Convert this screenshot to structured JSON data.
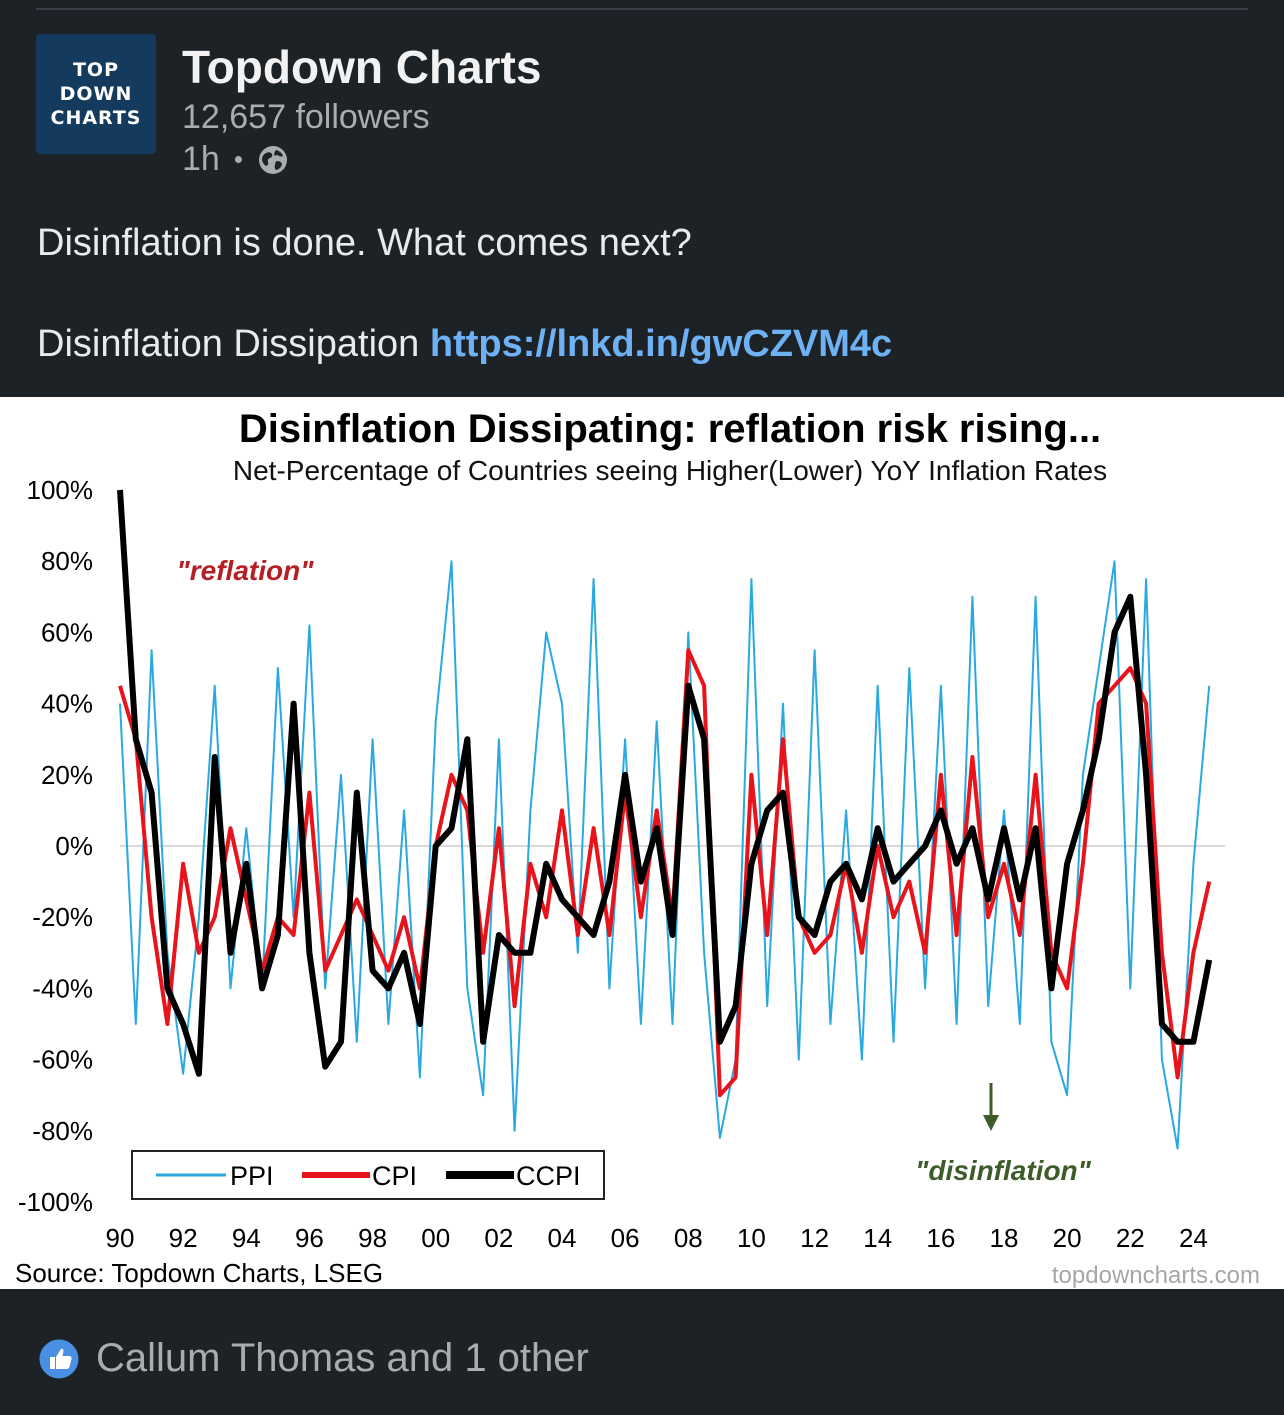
{
  "post": {
    "author": "Topdown Charts",
    "logo_lines": [
      "TOP",
      "DOWN",
      "CHARTS"
    ],
    "followers": "12,657 followers",
    "time": "1h",
    "separator": "•",
    "visibility_icon": "globe-icon",
    "line1": "Disinflation is done.  What comes next?",
    "line2_text": "Disinflation Dissipation",
    "link": "https://lnkd.in/gwCZVM4c"
  },
  "reactions": {
    "icon": "like-thumb-icon",
    "text": "Callum Thomas and 1 other"
  },
  "chart_data": {
    "type": "line",
    "title": "Disinflation Dissipating: reflation risk rising...",
    "subtitle": "Net-Percentage of Countries seeing Higher(Lower) YoY Inflation Rates",
    "ylim": [
      -100,
      100
    ],
    "xlim": [
      1990,
      2025
    ],
    "ytick_labels": [
      "100%",
      "80%",
      "60%",
      "40%",
      "20%",
      "0%",
      "-20%",
      "-40%",
      "-60%",
      "-80%",
      "-100%"
    ],
    "xtick_labels": [
      "90",
      "92",
      "94",
      "96",
      "98",
      "00",
      "02",
      "04",
      "06",
      "08",
      "10",
      "12",
      "14",
      "16",
      "18",
      "20",
      "22",
      "24"
    ],
    "annotations": {
      "reflation": "\"reflation\"",
      "disinflation": "\"disinflation\""
    },
    "source": "Source: Topdown Charts, LSEG",
    "watermark": "topdowncharts.com",
    "legend_position": "bottom-left",
    "colors": {
      "PPI": "#29a9e0",
      "CPI": "#e8141c",
      "CCPI": "#000000"
    },
    "series": [
      {
        "name": "PPI",
        "x": [
          1990,
          1990.5,
          1991,
          1991.5,
          1992,
          1992.5,
          1993,
          1993.5,
          1994,
          1994.5,
          1995,
          1995.5,
          1996,
          1996.5,
          1997,
          1997.5,
          1998,
          1998.5,
          1999,
          1999.5,
          2000,
          2000.5,
          2001,
          2001.5,
          2002,
          2002.5,
          2003,
          2003.5,
          2004,
          2004.5,
          2005,
          2005.5,
          2006,
          2006.5,
          2007,
          2007.5,
          2008,
          2008.5,
          2009,
          2009.5,
          2010,
          2010.5,
          2011,
          2011.5,
          2012,
          2012.5,
          2013,
          2013.5,
          2014,
          2014.5,
          2015,
          2015.5,
          2016,
          2016.5,
          2017,
          2017.5,
          2018,
          2018.5,
          2019,
          2019.5,
          2020,
          2020.5,
          2021,
          2021.5,
          2022,
          2022.5,
          2023,
          2023.5,
          2024,
          2024.5
        ],
        "y": [
          40,
          -50,
          55,
          -30,
          -64,
          -20,
          45,
          -40,
          5,
          -40,
          50,
          -20,
          62,
          -40,
          20,
          -55,
          30,
          -50,
          10,
          -65,
          35,
          80,
          -40,
          -70,
          30,
          -80,
          10,
          60,
          40,
          -30,
          75,
          -40,
          30,
          -50,
          35,
          -50,
          60,
          -30,
          -82,
          -60,
          75,
          -45,
          40,
          -60,
          55,
          -50,
          10,
          -60,
          45,
          -55,
          50,
          -40,
          45,
          -50,
          70,
          -45,
          10,
          -50,
          70,
          -55,
          -70,
          20,
          50,
          80,
          -40,
          75,
          -60,
          -85,
          -5,
          45
        ]
      },
      {
        "name": "CPI",
        "x": [
          1990,
          1990.5,
          1991,
          1991.5,
          1992,
          1992.5,
          1993,
          1993.5,
          1994,
          1994.5,
          1995,
          1995.5,
          1996,
          1996.5,
          1997,
          1997.5,
          1998,
          1998.5,
          1999,
          1999.5,
          2000,
          2000.5,
          2001,
          2001.5,
          2002,
          2002.5,
          2003,
          2003.5,
          2004,
          2004.5,
          2005,
          2005.5,
          2006,
          2006.5,
          2007,
          2007.5,
          2008,
          2008.5,
          2009,
          2009.5,
          2010,
          2010.5,
          2011,
          2011.5,
          2012,
          2012.5,
          2013,
          2013.5,
          2014,
          2014.5,
          2015,
          2015.5,
          2016,
          2016.5,
          2017,
          2017.5,
          2018,
          2018.5,
          2019,
          2019.5,
          2020,
          2020.5,
          2021,
          2021.5,
          2022,
          2022.5,
          2023,
          2023.5,
          2024,
          2024.5
        ],
        "y": [
          45,
          30,
          -20,
          -50,
          -5,
          -30,
          -20,
          5,
          -15,
          -35,
          -20,
          -25,
          15,
          -35,
          -25,
          -15,
          -25,
          -35,
          -20,
          -40,
          0,
          20,
          10,
          -30,
          5,
          -45,
          -5,
          -20,
          10,
          -25,
          5,
          -25,
          15,
          -20,
          10,
          -20,
          55,
          45,
          -70,
          -65,
          20,
          -25,
          30,
          -20,
          -30,
          -25,
          -5,
          -30,
          0,
          -20,
          -10,
          -30,
          20,
          -25,
          25,
          -20,
          -5,
          -25,
          20,
          -30,
          -40,
          -5,
          40,
          45,
          50,
          40,
          -30,
          -65,
          -30,
          -10
        ]
      },
      {
        "name": "CCPI",
        "x": [
          1990,
          1990.5,
          1991,
          1991.5,
          1992,
          1992.5,
          1993,
          1993.5,
          1994,
          1994.5,
          1995,
          1995.5,
          1996,
          1996.5,
          1997,
          1997.5,
          1998,
          1998.5,
          1999,
          1999.5,
          2000,
          2000.5,
          2001,
          2001.5,
          2002,
          2002.5,
          2003,
          2003.5,
          2004,
          2004.5,
          2005,
          2005.5,
          2006,
          2006.5,
          2007,
          2007.5,
          2008,
          2008.5,
          2009,
          2009.5,
          2010,
          2010.5,
          2011,
          2011.5,
          2012,
          2012.5,
          2013,
          2013.5,
          2014,
          2014.5,
          2015,
          2015.5,
          2016,
          2016.5,
          2017,
          2017.5,
          2018,
          2018.5,
          2019,
          2019.5,
          2020,
          2020.5,
          2021,
          2021.5,
          2022,
          2022.5,
          2023,
          2023.5,
          2024,
          2024.5
        ],
        "y": [
          100,
          30,
          15,
          -40,
          -50,
          -64,
          25,
          -30,
          -5,
          -40,
          -25,
          40,
          -30,
          -62,
          -55,
          15,
          -35,
          -40,
          -30,
          -50,
          0,
          5,
          30,
          -55,
          -25,
          -30,
          -30,
          -5,
          -15,
          -20,
          -25,
          -10,
          20,
          -10,
          5,
          -25,
          45,
          30,
          -55,
          -45,
          -5,
          10,
          15,
          -20,
          -25,
          -10,
          -5,
          -15,
          5,
          -10,
          -5,
          0,
          10,
          -5,
          5,
          -15,
          5,
          -15,
          5,
          -40,
          -5,
          10,
          30,
          60,
          70,
          20,
          -50,
          -55,
          -55,
          -32
        ]
      }
    ]
  }
}
